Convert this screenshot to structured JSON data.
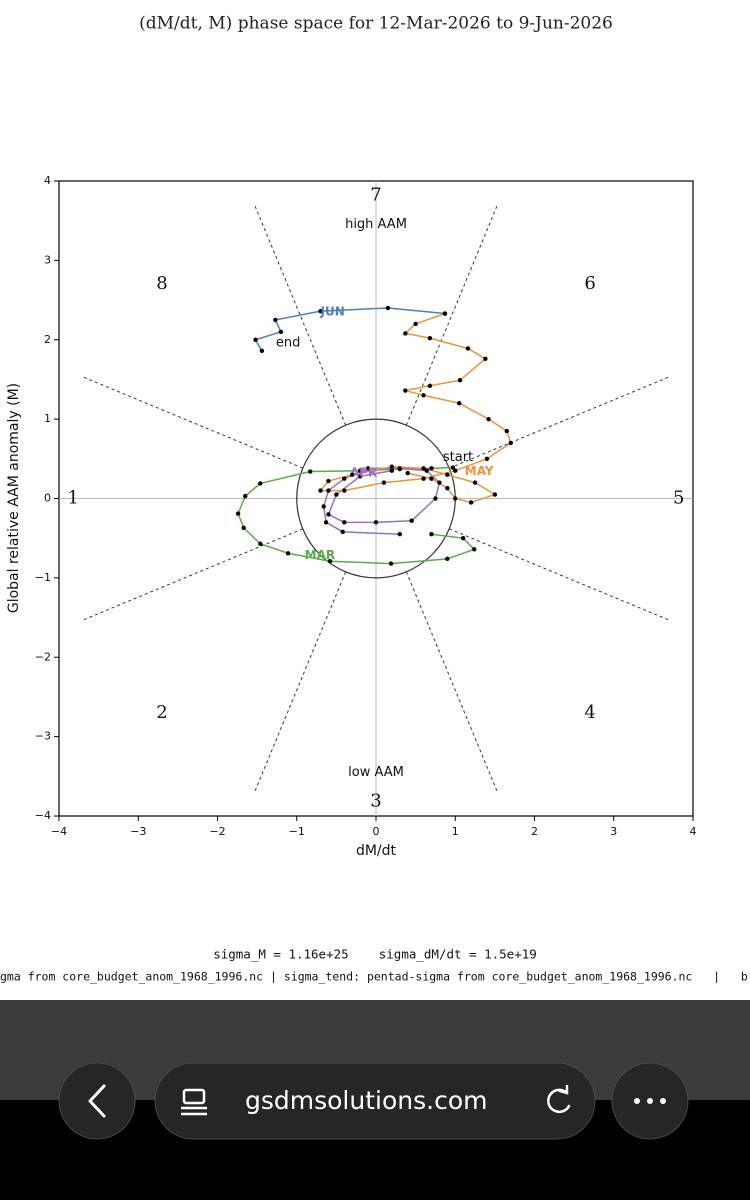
{
  "chart_data": {
    "type": "phase",
    "title": "(dM/dt, M) phase space for  12-Mar-2026 to  9-Jun-2026",
    "xlabel": "dM/dt",
    "ylabel": "Global relative AAM anomaly (M)",
    "xlim": [
      -4,
      4
    ],
    "ylim": [
      -4,
      4
    ],
    "xticks": [
      {
        "value": -4,
        "label": "−4"
      },
      {
        "value": -3,
        "label": "−3"
      },
      {
        "value": -2,
        "label": "−2"
      },
      {
        "value": -1,
        "label": "−1"
      },
      0,
      1,
      2,
      3,
      4
    ],
    "yticks": [
      {
        "value": -4,
        "label": "−4"
      },
      {
        "value": -3,
        "label": "−3"
      },
      {
        "value": -2,
        "label": "−2"
      },
      {
        "value": -1,
        "label": "−1"
      },
      0,
      1,
      2,
      3,
      4
    ],
    "zero_lines": true,
    "circle_radius": 1,
    "sector_line_radius": 4,
    "phase_labels": [
      "1",
      "2",
      "3",
      "4",
      "5",
      "6",
      "7",
      "8"
    ],
    "high_label": "high AAM",
    "low_label": "low AAM",
    "start_label": "start",
    "end_label": "end",
    "series": [
      {
        "name": "MAR",
        "color": "#5aac46",
        "x": [
          0.97,
          0.7,
          0.3,
          -0.2,
          -0.83,
          -1.46,
          -1.65,
          -1.74,
          -1.67,
          -1.46,
          -1.11,
          -0.58,
          0.19,
          0.9,
          1.24,
          1.1,
          0.7
        ],
        "y": [
          0.39,
          0.38,
          0.37,
          0.35,
          0.34,
          0.19,
          0.03,
          -0.19,
          -0.37,
          -0.57,
          -0.69,
          -0.79,
          -0.82,
          -0.76,
          -0.64,
          -0.5,
          -0.45
        ]
      },
      {
        "name": "APR",
        "color": "#9a6fc4",
        "x": [
          0.3,
          -0.42,
          -0.63,
          -0.66,
          -0.6,
          -0.4,
          -0.1,
          0.3,
          0.64,
          0.8,
          0.75,
          0.45,
          0.0,
          -0.4,
          -0.6,
          -0.5,
          -0.2,
          0.2
        ],
        "y": [
          -0.45,
          -0.42,
          -0.3,
          -0.1,
          0.1,
          0.25,
          0.38,
          0.38,
          0.35,
          0.2,
          0.0,
          -0.28,
          -0.3,
          -0.3,
          -0.2,
          0.05,
          0.28,
          0.35
        ]
      },
      {
        "name": "MAY",
        "color": "#f0913a",
        "x": [
          0.4,
          0.7,
          0.9,
          1.0,
          1.2,
          1.5,
          1.25,
          0.9,
          0.6,
          0.2,
          -0.3,
          -0.6,
          -0.7,
          -0.4,
          0.1,
          0.6,
          1.0,
          1.4,
          1.7,
          1.65,
          1.42,
          1.05,
          0.6,
          0.37,
          0.68,
          1.06,
          1.38,
          1.16,
          0.68,
          0.37,
          0.5,
          0.87
        ],
        "y": [
          0.32,
          0.25,
          0.13,
          0.0,
          -0.05,
          0.05,
          0.2,
          0.3,
          0.38,
          0.4,
          0.3,
          0.22,
          0.1,
          0.1,
          0.2,
          0.25,
          0.35,
          0.5,
          0.7,
          0.85,
          1.0,
          1.2,
          1.3,
          1.36,
          1.42,
          1.49,
          1.76,
          1.89,
          2.02,
          2.08,
          2.2,
          2.33
        ]
      },
      {
        "name": "JUN",
        "color": "#4a80c0",
        "x": [
          0.87,
          0.15,
          -0.7,
          -1.27,
          -1.2,
          -1.52,
          -1.44
        ],
        "y": [
          2.33,
          2.4,
          2.36,
          2.25,
          2.1,
          2.0,
          1.86
        ]
      }
    ]
  },
  "footer": {
    "sigma_line": "sigma_M = 1.16e+25    sigma_dM/dt = 1.5e+19",
    "source_line": "gma from core_budget_anom_1968_1996.nc | sigma_tend: pentad-sigma from core_budget_anom_1968_1996.nc   |   b"
  },
  "browser": {
    "url": "gsdmsolutions.com"
  }
}
